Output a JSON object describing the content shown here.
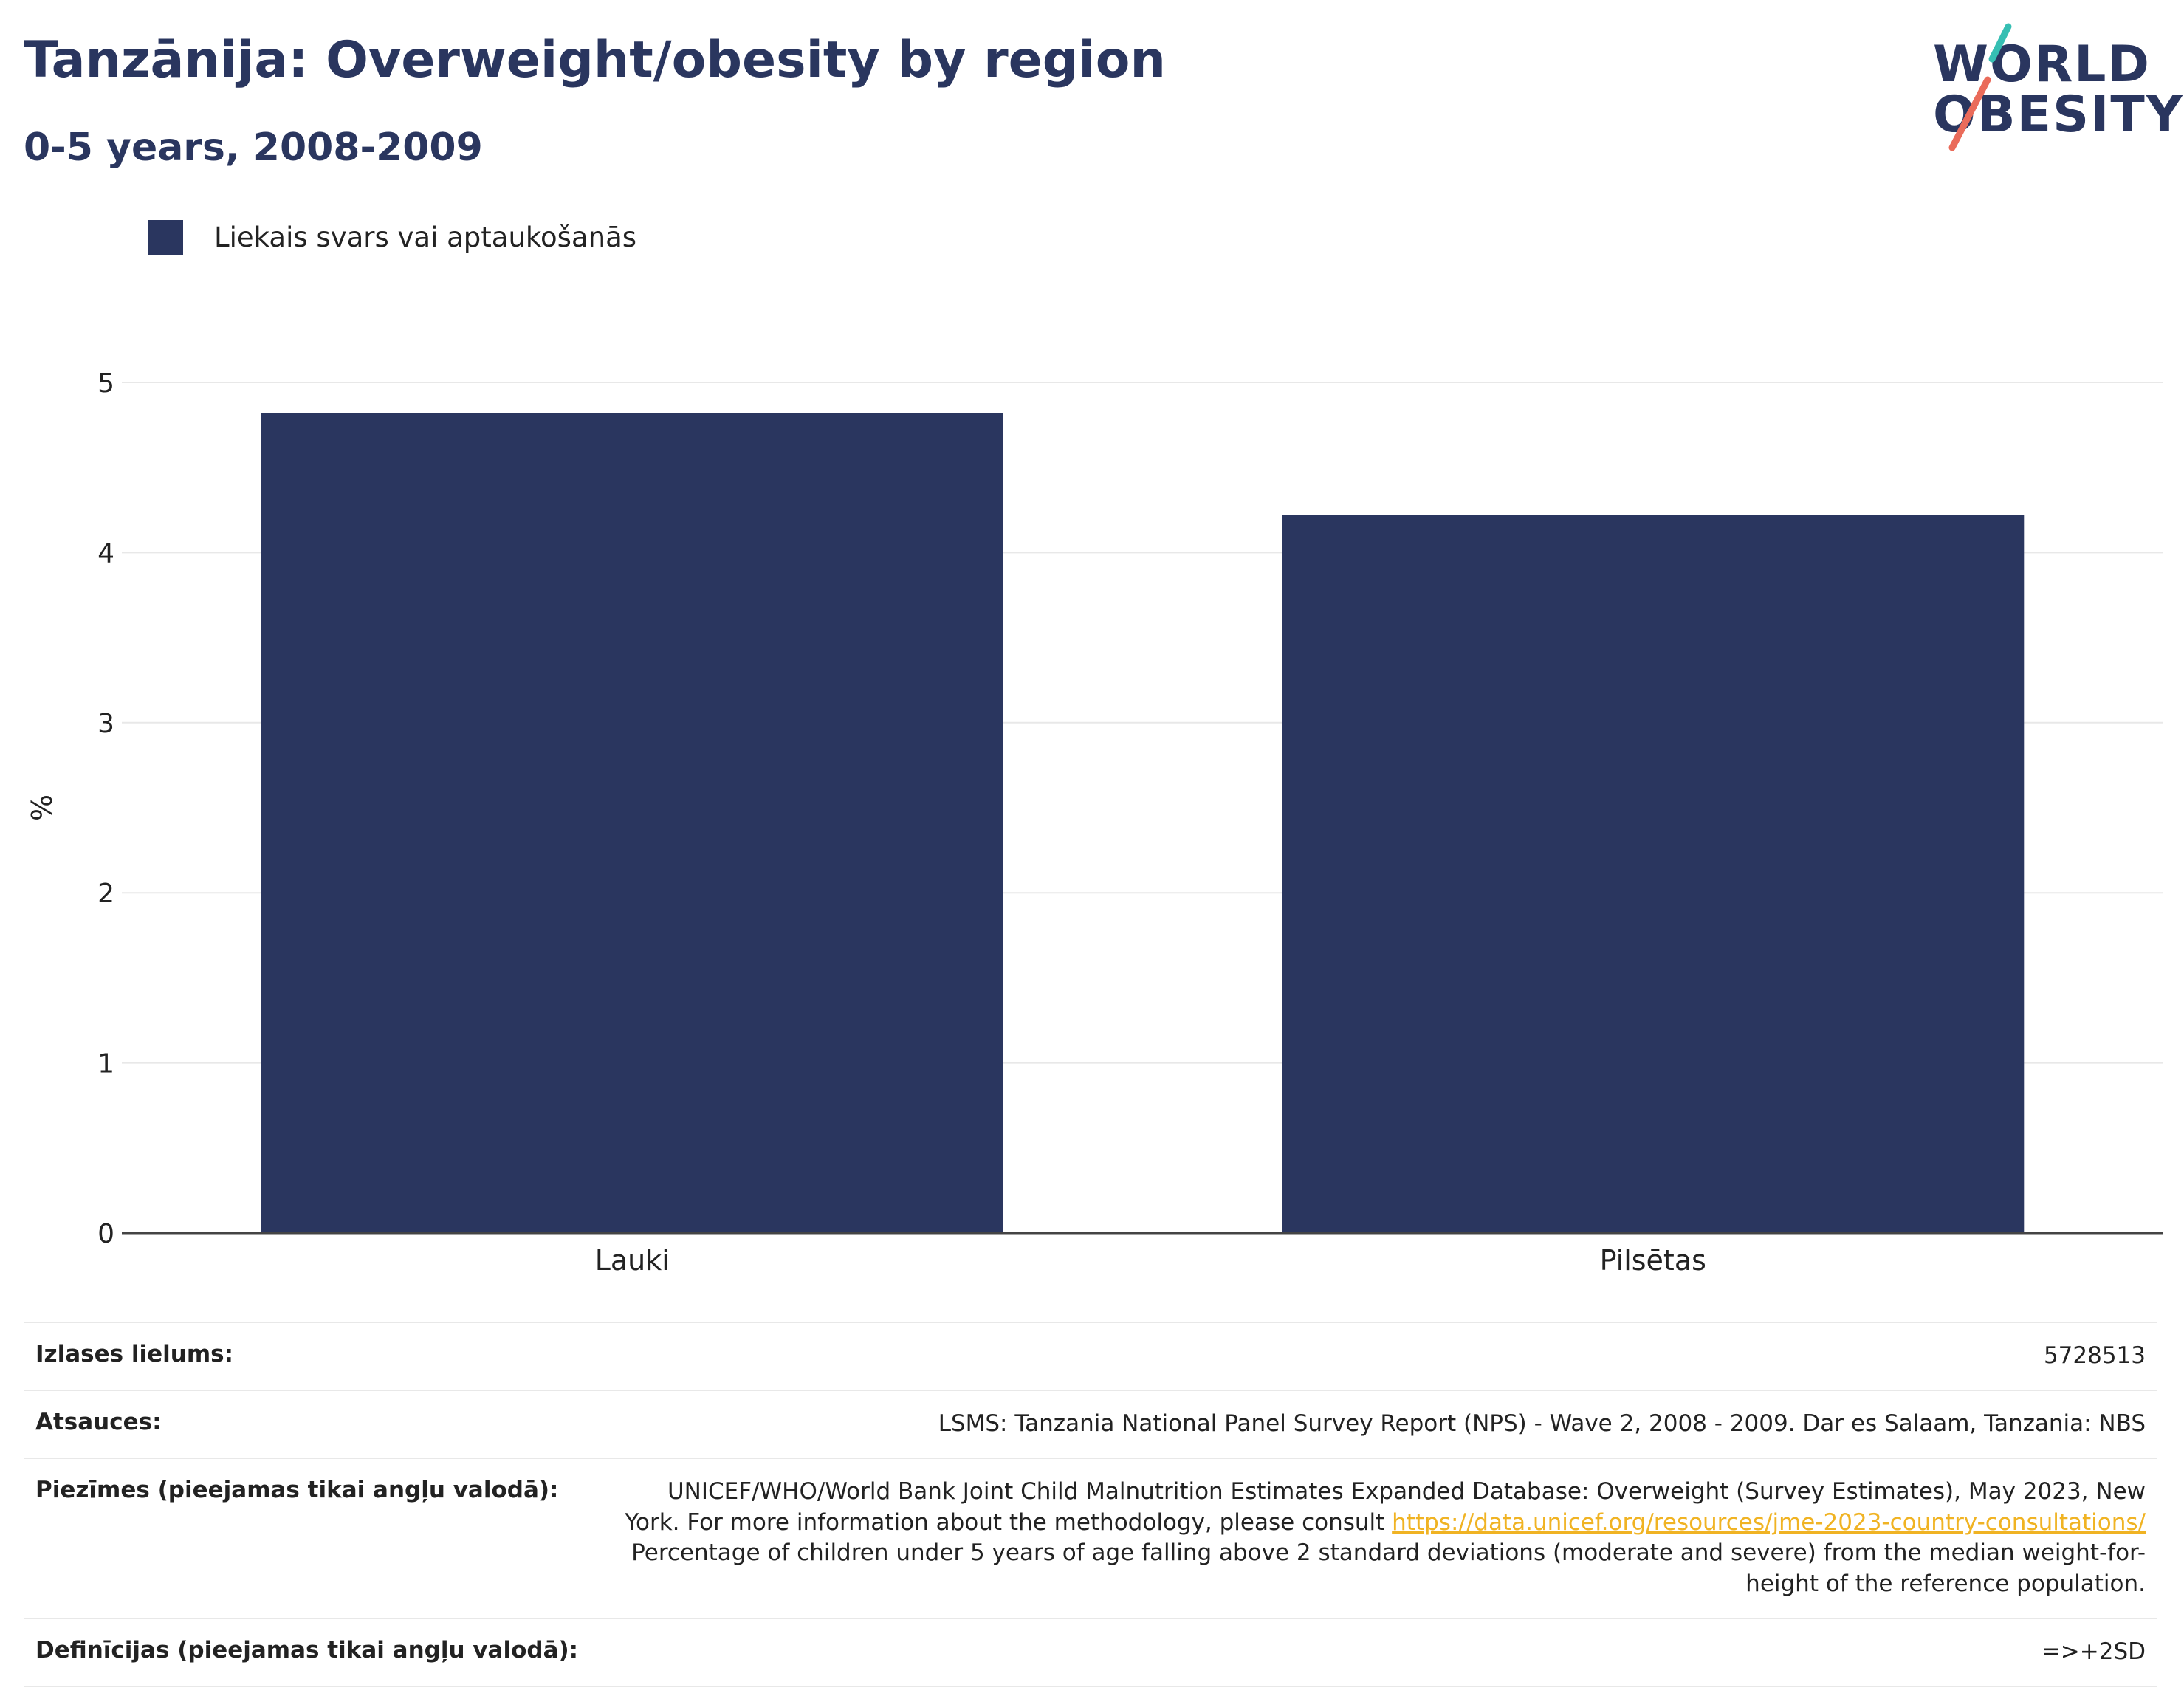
{
  "header": {
    "title": "Tanzānija: Overweight/obesity by region",
    "subtitle": "0-5 years, 2008-2009"
  },
  "logo": {
    "line1": "WORLD",
    "line2": "OBESITY"
  },
  "colors": {
    "bar": "#2a365f",
    "title": "#2a365f",
    "logo_teal": "#36bfb3",
    "logo_coral": "#ea6b5a",
    "link": "#f0b323",
    "grid": "#e8e8e8",
    "axis": "#444444"
  },
  "chart_data": {
    "type": "bar",
    "categories": [
      "Lauki",
      "Pilsētas"
    ],
    "series": [
      {
        "name": "Liekais svars vai aptaukošanās",
        "values": [
          4.82,
          4.22
        ]
      }
    ],
    "ylabel": "%",
    "ylim": [
      0,
      5
    ],
    "yticks": [
      0,
      1,
      2,
      3,
      4,
      5
    ],
    "grid": true,
    "legend": "top-left"
  },
  "info": {
    "sample_size": {
      "label": "Izlases lielums:",
      "value": "5728513"
    },
    "references": {
      "label": "Atsauces:",
      "value": "LSMS: Tanzania National Panel Survey Report (NPS) - Wave 2, 2008 - 2009. Dar es Salaam, Tanzania: NBS"
    },
    "notes": {
      "label": "Piezīmes (pieejamas tikai angļu valodā):",
      "text_before": "UNICEF/WHO/World Bank Joint Child Malnutrition Estimates Expanded Database: Overweight (Survey Estimates), May 2023, New York. For more information about the methodology, please consult ",
      "link": "https://data.unicef.org/resources/jme-2023-country-consultations/",
      "text_after": " Percentage of children under 5 years of age falling above 2 standard deviations (moderate and severe) from the median weight-for-height of the reference population."
    },
    "definitions": {
      "label": "Definīcijas (pieejamas tikai angļu valodā):",
      "value": "=>+2SD"
    }
  }
}
